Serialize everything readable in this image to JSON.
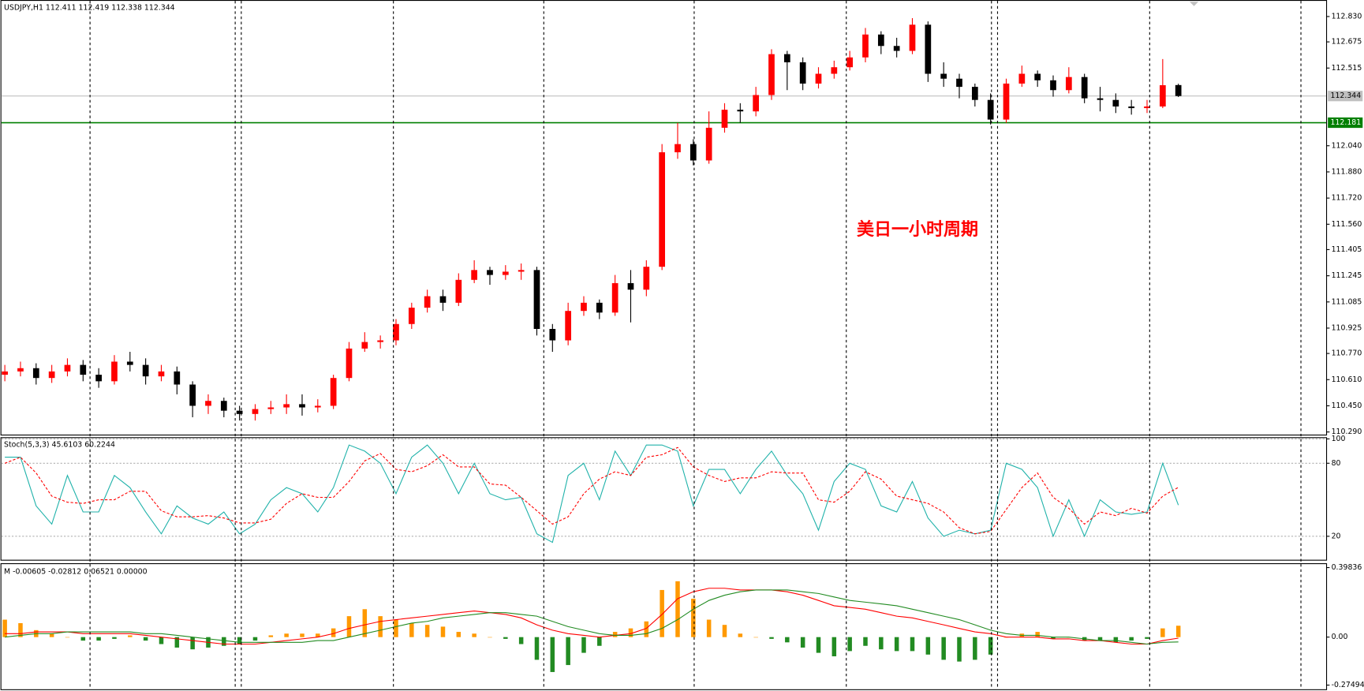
{
  "chart_data": [
    {
      "type": "candlestick",
      "title": "USDJPY,H1 112.411 112.419 112.338 112.344",
      "annotation": "美日一小时周期",
      "annotation_color": "#ff0000",
      "up_color": "#ff0000",
      "down_color": "#000000",
      "open": [
        110.64,
        110.66,
        110.68,
        110.62,
        110.66,
        110.7,
        110.64,
        110.6,
        110.72,
        110.7,
        110.63,
        110.66,
        110.58,
        110.45,
        110.48,
        110.42,
        110.4,
        110.43,
        110.44,
        110.46,
        110.44,
        110.45,
        110.62,
        110.8,
        110.84,
        110.85,
        110.95,
        111.05,
        111.12,
        111.08,
        111.22,
        111.28,
        111.25,
        111.27,
        111.28,
        110.92,
        110.85,
        111.03,
        111.08,
        111.02,
        111.2,
        111.16,
        111.3,
        112.0,
        112.05,
        111.95,
        112.15,
        112.26,
        112.25,
        112.35,
        112.6,
        112.55,
        112.42,
        112.48,
        112.52,
        112.58,
        112.72,
        112.65,
        112.62,
        112.78,
        112.48,
        112.45,
        112.4,
        112.32,
        112.2,
        112.42,
        112.48,
        112.44,
        112.38,
        112.46,
        112.33,
        112.32,
        112.28,
        112.27,
        112.28,
        112.411
      ],
      "high": [
        110.7,
        110.72,
        110.71,
        110.7,
        110.74,
        110.73,
        110.68,
        110.76,
        110.78,
        110.74,
        110.7,
        110.69,
        110.6,
        110.52,
        110.5,
        110.45,
        110.46,
        110.48,
        110.52,
        110.52,
        110.49,
        110.64,
        110.84,
        110.9,
        110.88,
        110.98,
        111.08,
        111.16,
        111.16,
        111.26,
        111.34,
        111.3,
        111.31,
        111.32,
        111.3,
        110.95,
        111.08,
        111.12,
        111.1,
        111.25,
        111.28,
        111.34,
        112.05,
        112.18,
        112.08,
        112.25,
        112.3,
        112.3,
        112.4,
        112.63,
        112.62,
        112.58,
        112.52,
        112.56,
        112.62,
        112.76,
        112.74,
        112.7,
        112.82,
        112.8,
        112.55,
        112.48,
        112.42,
        112.36,
        112.45,
        112.53,
        112.5,
        112.47,
        112.52,
        112.48,
        112.4,
        112.36,
        112.32,
        112.32,
        112.57,
        112.419
      ],
      "low": [
        110.6,
        110.63,
        110.58,
        110.59,
        110.63,
        110.6,
        110.56,
        110.58,
        110.66,
        110.58,
        110.6,
        110.52,
        110.38,
        110.4,
        110.38,
        110.36,
        110.36,
        110.4,
        110.4,
        110.39,
        110.41,
        110.43,
        110.6,
        110.78,
        110.8,
        110.82,
        110.92,
        111.02,
        111.03,
        111.06,
        111.2,
        111.19,
        111.22,
        111.22,
        110.88,
        110.78,
        110.82,
        111.0,
        110.98,
        111.0,
        110.96,
        111.12,
        111.28,
        111.96,
        111.92,
        111.93,
        112.12,
        112.18,
        112.22,
        112.32,
        112.38,
        112.38,
        112.39,
        112.45,
        112.5,
        112.55,
        112.6,
        112.58,
        112.6,
        112.43,
        112.4,
        112.33,
        112.28,
        112.17,
        112.18,
        112.4,
        112.4,
        112.34,
        112.36,
        112.3,
        112.25,
        112.24,
        112.23,
        112.24,
        112.27,
        112.338
      ],
      "close": [
        110.66,
        110.68,
        110.62,
        110.66,
        110.7,
        110.64,
        110.6,
        110.72,
        110.7,
        110.63,
        110.66,
        110.58,
        110.45,
        110.48,
        110.42,
        110.4,
        110.43,
        110.44,
        110.46,
        110.44,
        110.45,
        110.62,
        110.8,
        110.84,
        110.85,
        110.95,
        111.05,
        111.12,
        111.08,
        111.22,
        111.28,
        111.25,
        111.27,
        111.28,
        110.92,
        110.85,
        111.03,
        111.08,
        111.02,
        111.2,
        111.16,
        111.3,
        112.0,
        112.05,
        111.95,
        112.15,
        112.26,
        112.25,
        112.35,
        112.6,
        112.55,
        112.42,
        112.48,
        112.52,
        112.58,
        112.72,
        112.65,
        112.62,
        112.78,
        112.48,
        112.45,
        112.4,
        112.32,
        112.2,
        112.42,
        112.48,
        112.44,
        112.38,
        112.46,
        112.33,
        112.32,
        112.28,
        112.27,
        112.28,
        112.41,
        112.344
      ],
      "price_line": 112.344,
      "price_line_color": "#c0c0c0",
      "level_line": 112.181,
      "level_line_color": "#008000",
      "ylim": [
        110.274,
        112.931
      ],
      "yticks": [
        {
          "value": 112.83,
          "label": "112.830"
        },
        112.675,
        112.515,
        {
          "value": 112.04,
          "label": "112.040"
        },
        {
          "value": 111.88,
          "label": "111.880"
        },
        {
          "value": 111.72,
          "label": "111.720"
        },
        {
          "value": 111.56,
          "label": "111.560"
        },
        111.405,
        111.245,
        111.085,
        110.925,
        {
          "value": 110.77,
          "label": "110.770"
        },
        {
          "value": 110.61,
          "label": "110.610"
        },
        {
          "value": 110.45,
          "label": "110.450"
        },
        {
          "value": 110.29,
          "label": "110.290"
        }
      ]
    },
    {
      "type": "line",
      "title": "Stoch(5,3,3) 45.6103 60.2244",
      "series": [
        {
          "color": "#20b2aa",
          "dashed": false,
          "values": [
            85,
            85,
            45,
            30,
            70,
            40,
            40,
            70,
            60,
            40,
            22,
            45,
            35,
            30,
            40,
            22,
            30,
            50,
            60,
            55,
            40,
            60,
            95,
            90,
            80,
            55,
            85,
            95,
            80,
            55,
            80,
            55,
            50,
            52,
            22,
            15,
            70,
            80,
            50,
            90,
            70,
            95,
            95,
            90,
            45,
            75,
            75,
            55,
            75,
            90,
            70,
            55,
            25,
            65,
            80,
            75,
            45,
            40,
            65,
            35,
            20,
            25,
            22,
            25,
            80,
            75,
            60,
            20,
            50,
            20,
            50,
            40,
            38,
            40,
            80,
            45.6103
          ]
        },
        {
          "color": "#ff0000",
          "dashed": true,
          "values": [
            80,
            85,
            72,
            53,
            48,
            47,
            50,
            50,
            57,
            57,
            41,
            36,
            36,
            37,
            35,
            31,
            31,
            34,
            47,
            55,
            52,
            52,
            65,
            82,
            88,
            75,
            73,
            78,
            87,
            77,
            77,
            63,
            62,
            52,
            41,
            30,
            36,
            55,
            67,
            73,
            70,
            85,
            87,
            93,
            77,
            70,
            65,
            68,
            68,
            73,
            72,
            72,
            50,
            48,
            57,
            73,
            67,
            53,
            50,
            47,
            40,
            27,
            22,
            24,
            42,
            60,
            72,
            52,
            43,
            30,
            40,
            37,
            43,
            39,
            53,
            60.2244
          ]
        }
      ],
      "ylim": [
        0,
        101.4
      ],
      "yticks": [
        20,
        80,
        100
      ],
      "grid": true
    },
    {
      "type": "bar",
      "title": "M -0.00605 -0.02812 0.06521 0.00000",
      "pos_color": "#ff9900",
      "neg_color": "#228b22",
      "values": [
        0.1,
        0.08,
        0.04,
        0.02,
        0.0,
        -0.02,
        -0.02,
        -0.01,
        0.01,
        -0.02,
        -0.04,
        -0.06,
        -0.07,
        -0.06,
        -0.05,
        -0.04,
        -0.02,
        0.01,
        0.02,
        0.02,
        0.02,
        0.05,
        0.12,
        0.16,
        0.12,
        0.1,
        0.08,
        0.07,
        0.06,
        0.03,
        0.02,
        0.0,
        -0.01,
        -0.04,
        -0.13,
        -0.2,
        -0.16,
        -0.09,
        -0.05,
        0.03,
        0.05,
        0.09,
        0.27,
        0.32,
        0.22,
        0.1,
        0.07,
        0.02,
        0.0,
        -0.01,
        -0.03,
        -0.06,
        -0.09,
        -0.11,
        -0.08,
        -0.05,
        -0.07,
        -0.08,
        -0.08,
        -0.1,
        -0.13,
        -0.14,
        -0.13,
        -0.1,
        0.0,
        0.02,
        0.03,
        -0.01,
        0.0,
        -0.02,
        -0.02,
        -0.03,
        -0.02,
        -0.01,
        0.05,
        0.06521
      ],
      "series": [
        {
          "color": "#ff0000",
          "values": [
            0.02,
            0.02,
            0.03,
            0.03,
            0.03,
            0.02,
            0.02,
            0.02,
            0.02,
            0.01,
            0.0,
            -0.01,
            -0.02,
            -0.03,
            -0.04,
            -0.04,
            -0.04,
            -0.03,
            -0.02,
            -0.01,
            0.0,
            0.02,
            0.05,
            0.07,
            0.09,
            0.1,
            0.11,
            0.12,
            0.13,
            0.14,
            0.15,
            0.14,
            0.13,
            0.11,
            0.07,
            0.04,
            0.02,
            0.01,
            0.0,
            0.01,
            0.02,
            0.05,
            0.13,
            0.22,
            0.26,
            0.28,
            0.28,
            0.27,
            0.27,
            0.27,
            0.26,
            0.24,
            0.21,
            0.18,
            0.17,
            0.16,
            0.14,
            0.12,
            0.11,
            0.09,
            0.07,
            0.05,
            0.03,
            0.02,
            0.0,
            0.0,
            0.0,
            -0.01,
            -0.01,
            -0.02,
            -0.02,
            -0.03,
            -0.04,
            -0.04,
            -0.02,
            -0.00605
          ]
        },
        {
          "color": "#228b22",
          "values": [
            0.0,
            0.01,
            0.02,
            0.02,
            0.03,
            0.03,
            0.03,
            0.03,
            0.03,
            0.02,
            0.02,
            0.01,
            0.0,
            -0.01,
            -0.02,
            -0.03,
            -0.03,
            -0.03,
            -0.03,
            -0.03,
            -0.02,
            -0.02,
            0.0,
            0.02,
            0.04,
            0.06,
            0.08,
            0.09,
            0.11,
            0.12,
            0.13,
            0.14,
            0.14,
            0.13,
            0.12,
            0.09,
            0.06,
            0.04,
            0.02,
            0.01,
            0.01,
            0.02,
            0.05,
            0.1,
            0.16,
            0.21,
            0.24,
            0.26,
            0.27,
            0.27,
            0.27,
            0.26,
            0.25,
            0.23,
            0.21,
            0.2,
            0.19,
            0.18,
            0.16,
            0.14,
            0.12,
            0.1,
            0.07,
            0.04,
            0.02,
            0.01,
            0.01,
            0.0,
            0.0,
            -0.01,
            -0.02,
            -0.02,
            -0.03,
            -0.04,
            -0.03,
            -0.02812
          ]
        }
      ],
      "ylim": [
        -0.2988,
        0.4183
      ],
      "yticks": [
        0.39836,
        {
          "value": 0,
          "label": "0.00"
        },
        -0.27494
      ]
    }
  ]
}
